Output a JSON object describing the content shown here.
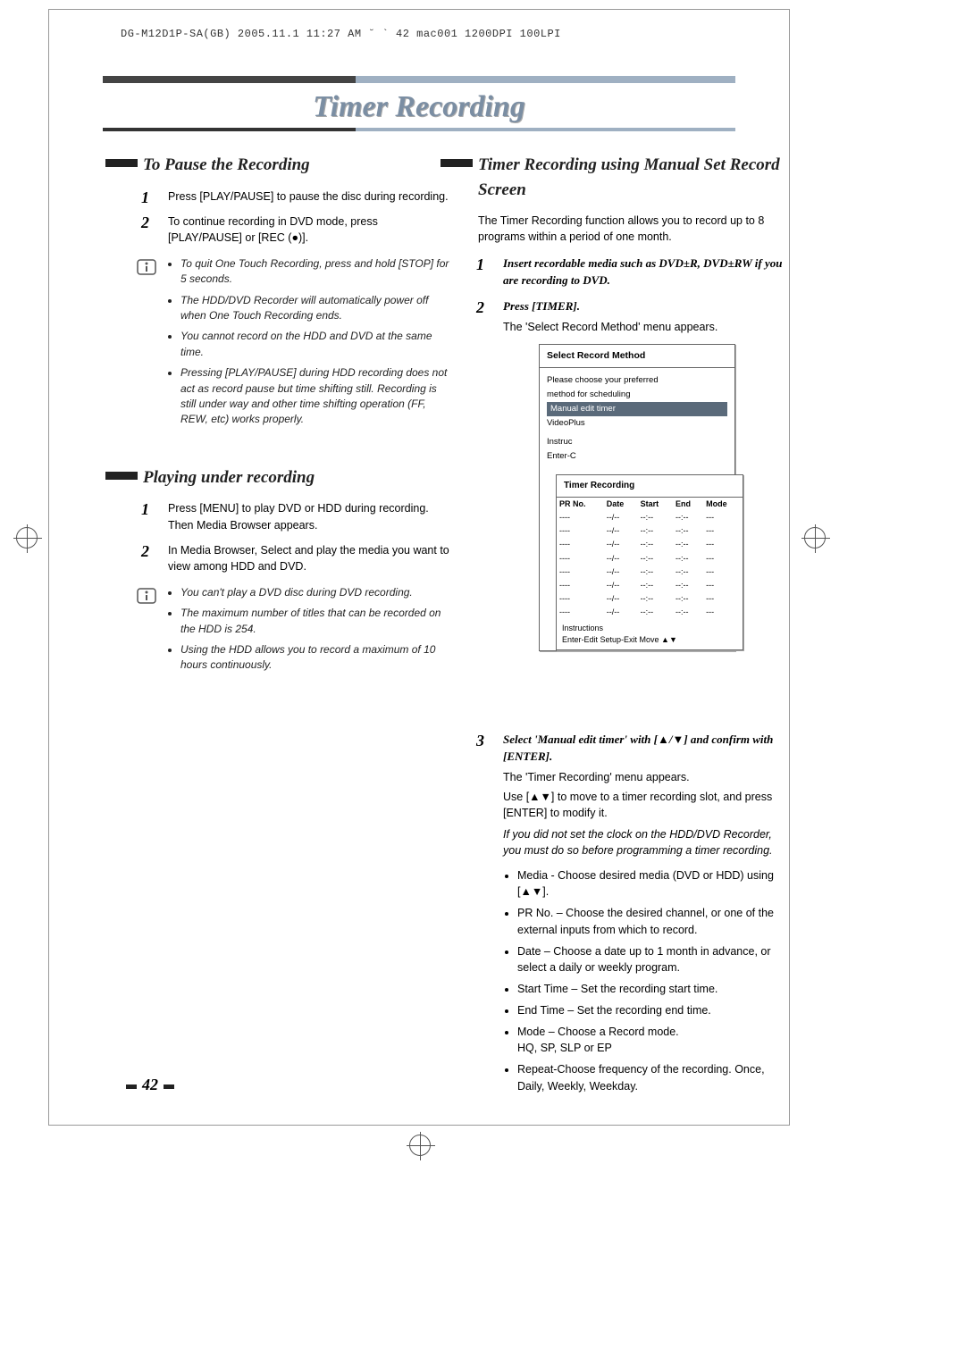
{
  "header": {
    "left": "DG-M12D1P-SA(GB)  2005.11.1 11:27 AM  ˘ ` 42   mac001  1200DPI 100LPI",
    "mark": ""
  },
  "page_title": "Timer Recording",
  "page_number": "42",
  "left_col": {
    "sec1": {
      "title": "To Pause the Recording",
      "step1": "Press [PLAY/PAUSE] to pause the disc during recording.",
      "step2": "To continue recording in DVD mode, press [PLAY/PAUSE] or [REC (●)].",
      "notes": [
        "To quit One Touch Recording, press and hold [STOP] for 5 seconds.",
        "The HDD/DVD Recorder will automatically power off when One Touch Recording ends.",
        "You cannot record on the HDD and DVD at the same time.",
        "Pressing [PLAY/PAUSE] during HDD recording does not act as record pause but time shifting still. Recording is still under way and other time shifting operation (FF, REW, etc) works properly."
      ]
    },
    "sec2": {
      "title": "Playing under recording",
      "step1": "Press [MENU] to play DVD or HDD during recording. Then Media Browser appears.",
      "step2": "In Media Browser, Select and play the media you want to view among HDD and DVD.",
      "notes": [
        "You can't play a DVD disc during DVD recording.",
        "The maximum number of titles that can be recorded on the HDD is 254.",
        "Using the HDD allows you to record a maximum of 10 hours continuously."
      ]
    }
  },
  "right_col": {
    "title": "Timer Recording using Manual Set Record Screen",
    "intro": "The Timer Recording function allows you to record up to 8 programs within a period of one month.",
    "step1": "Insert recordable media such as DVD±R, DVD±RW if you are recording to DVD.",
    "step2": "Press [TIMER].",
    "step2_body": "The 'Select Record Method' menu appears.",
    "dialog1": {
      "title": "Select Record Method",
      "line1": "Please choose your preferred",
      "line2": "method for scheduling",
      "opt1": "Manual edit timer",
      "opt2": "VideoPlus",
      "instr1": "Instruc",
      "instr2": "Enter-C"
    },
    "dialog2": {
      "title": "Timer Recording",
      "cols": [
        "PR No.",
        "Date",
        "Start",
        "End",
        "Mode"
      ],
      "row": [
        "----",
        "--/--",
        "--:--",
        "--:--",
        "---"
      ],
      "instr_label": "Instructions",
      "instr_text": "Enter-Edit  Setup-Exit  Move ▲▼"
    },
    "step3_head": "Select 'Manual edit timer' with [▲/▼] and confirm with [ENTER].",
    "step3_body1": "The 'Timer Recording' menu appears.",
    "step3_body2": "Use [▲▼] to move to a timer recording slot, and press [ENTER] to modify it.",
    "step3_note": "If you did not set the clock on the HDD/DVD Recorder, you must do so before programming a timer recording.",
    "bullets": [
      "Media - Choose desired media (DVD or HDD) using [▲▼].",
      "PR No. – Choose the desired channel, or one of the external inputs from which to record.",
      "Date – Choose a date up to 1 month in advance, or select a daily or weekly program.",
      "Start Time – Set the recording start time.",
      "End Time – Set the recording end time.",
      "Mode – Choose a Record mode.\nHQ, SP, SLP or EP",
      "Repeat-Choose frequency of the recording. Once, Daily, Weekly, Weekday."
    ]
  }
}
